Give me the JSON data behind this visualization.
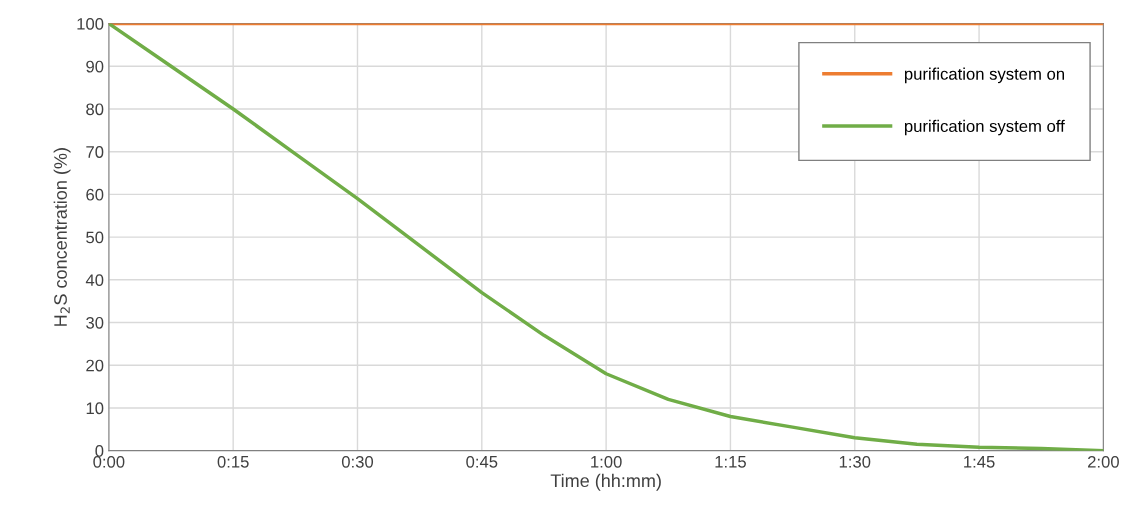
{
  "chart_data": {
    "type": "line",
    "xlabel": "Time (hh:mm)",
    "ylabel": "H$_{2}$S concentration (%)",
    "xlim": [
      0,
      2
    ],
    "ylim": [
      0,
      100
    ],
    "xticks": [
      {
        "value": 0,
        "label": "0:00"
      },
      {
        "value": 0.25,
        "label": "0:15"
      },
      {
        "value": 0.5,
        "label": "0:30"
      },
      {
        "value": 0.75,
        "label": "0:45"
      },
      {
        "value": 1,
        "label": "1:00"
      },
      {
        "value": 1.25,
        "label": "1:15"
      },
      {
        "value": 1.5,
        "label": "1:30"
      },
      {
        "value": 1.75,
        "label": "1:45"
      },
      {
        "value": 2,
        "label": "2:00"
      }
    ],
    "yticks": [
      0,
      10,
      20,
      30,
      40,
      50,
      60,
      70,
      80,
      90,
      100
    ],
    "grid": true,
    "legend": "top right",
    "marker": "none",
    "line_style": "solid",
    "series": [
      {
        "name": "purification system on",
        "color": "#ed7d31",
        "x": [
          0,
          0.5,
          1,
          1.5,
          2
        ],
        "values": [
          100,
          100,
          100,
          100,
          100
        ]
      },
      {
        "name": "purification system off",
        "color": "#70ad47",
        "x": [
          0,
          0.125,
          0.25,
          0.375,
          0.5,
          0.625,
          0.75,
          0.875,
          1,
          1.125,
          1.25,
          1.375,
          1.5,
          1.625,
          1.75,
          1.875,
          2
        ],
        "values": [
          100,
          90,
          80,
          69.5,
          59,
          48,
          37,
          27,
          18,
          12,
          8,
          5.5,
          3,
          1.5,
          0.8,
          0.5,
          0
        ]
      }
    ]
  }
}
